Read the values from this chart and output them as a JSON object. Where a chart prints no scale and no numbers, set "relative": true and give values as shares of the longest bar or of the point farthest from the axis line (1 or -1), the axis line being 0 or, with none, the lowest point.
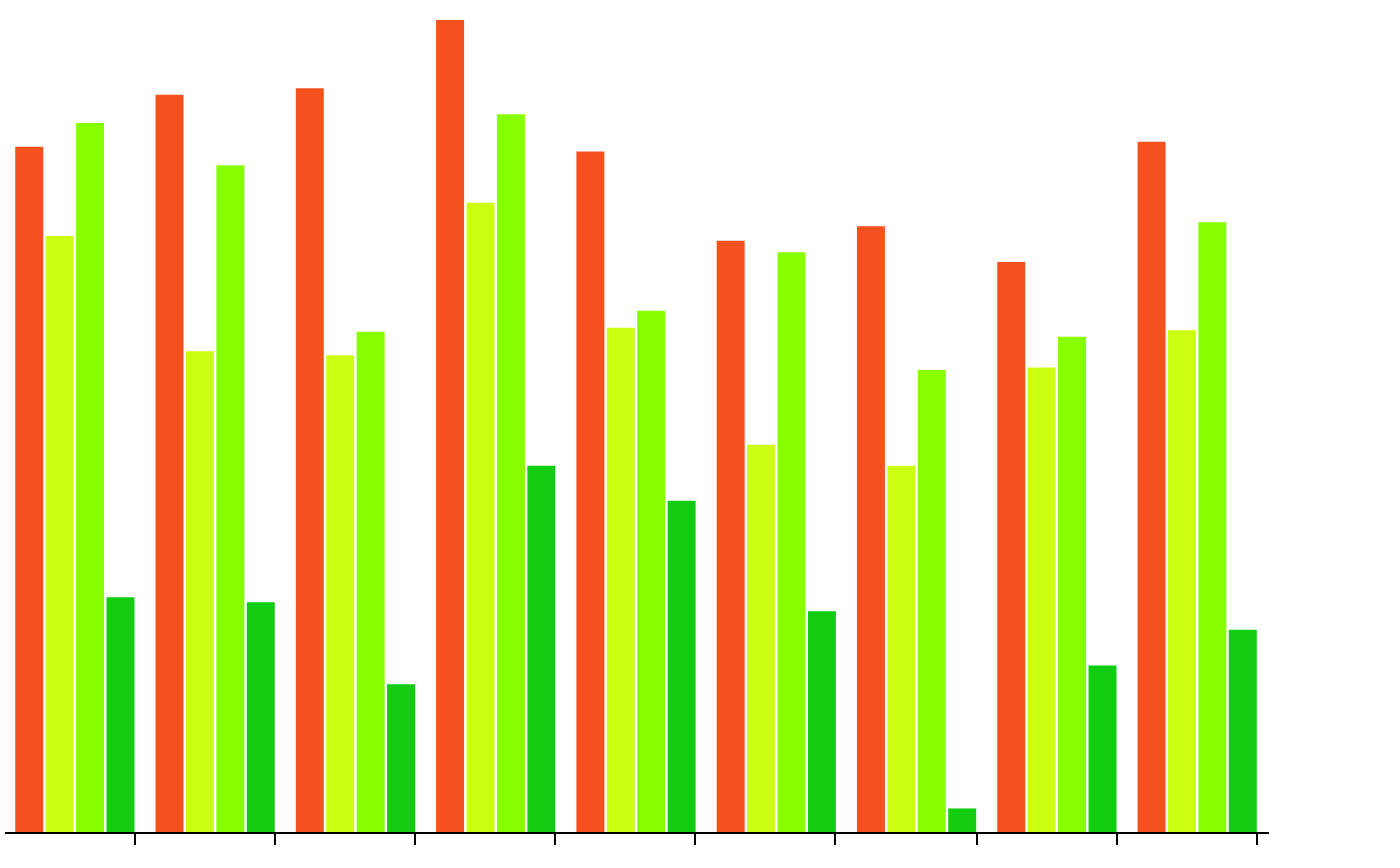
{
  "chart_data": {
    "type": "bar",
    "relative": true,
    "categories": [
      null,
      null,
      null,
      null,
      null,
      null,
      null,
      null,
      null
    ],
    "series": [
      {
        "color": "#f4511e",
        "values": [
          0.844,
          0.908,
          0.916,
          1,
          0.838,
          0.728,
          0.746,
          0.702,
          0.85
        ]
      },
      {
        "color": "#ccff11",
        "values": [
          0.734,
          0.592,
          0.587,
          0.775,
          0.621,
          0.477,
          0.451,
          0.572,
          0.618
        ]
      },
      {
        "color": "#88ff00",
        "values": [
          0.873,
          0.821,
          0.616,
          0.884,
          0.642,
          0.714,
          0.569,
          0.61,
          0.751
        ]
      },
      {
        "color": "#11cc11",
        "values": [
          0.289,
          0.283,
          0.182,
          0.451,
          0.408,
          0.272,
          0.029,
          0.205,
          0.249
        ]
      }
    ]
  }
}
